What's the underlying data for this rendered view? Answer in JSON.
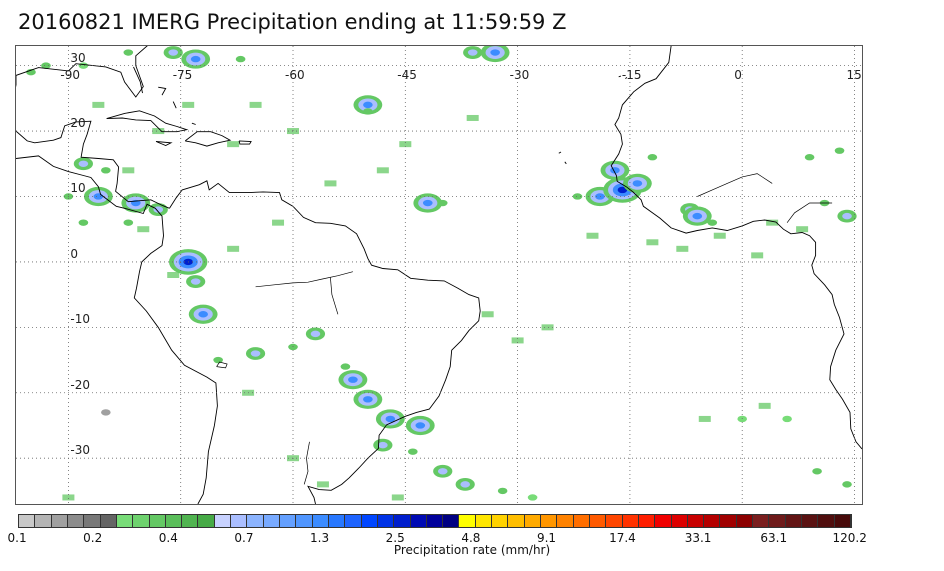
{
  "title": "20160821 IMERG Precipitation ending at 11:59:59 Z",
  "map": {
    "projection": "equirectangular",
    "lon_range": [
      -97,
      16
    ],
    "lat_range": [
      -37,
      33
    ],
    "lon_labels": [
      {
        "lon": -90,
        "text": "-90"
      },
      {
        "lon": -75,
        "text": "-75"
      },
      {
        "lon": -60,
        "text": "-60"
      },
      {
        "lon": -45,
        "text": "-45"
      },
      {
        "lon": -30,
        "text": "-30"
      },
      {
        "lon": -15,
        "text": "-15"
      },
      {
        "lon": 0,
        "text": "0"
      },
      {
        "lon": 15,
        "text": "15"
      }
    ],
    "lat_labels": [
      {
        "lat": 30,
        "text": "30"
      },
      {
        "lat": 20,
        "text": "20"
      },
      {
        "lat": 10,
        "text": "10"
      },
      {
        "lat": 0,
        "text": "0"
      },
      {
        "lat": -10,
        "text": "-10"
      },
      {
        "lat": -20,
        "text": "-20"
      },
      {
        "lat": -30,
        "text": "-30"
      }
    ],
    "gridlines": "dotted",
    "coastline_color": "#000000",
    "precip_cells": [
      {
        "lon": -95,
        "lat": 29,
        "level": 12
      },
      {
        "lon": -93,
        "lat": 30,
        "level": 9
      },
      {
        "lon": -88,
        "lat": 30,
        "level": 6
      },
      {
        "lon": -82,
        "lat": 32,
        "level": 8
      },
      {
        "lon": -76,
        "lat": 32,
        "level": 14
      },
      {
        "lon": -73,
        "lat": 31,
        "level": 20
      },
      {
        "lon": -67,
        "lat": 31,
        "level": 10
      },
      {
        "lon": -36,
        "lat": 32,
        "level": 16
      },
      {
        "lon": -33,
        "lat": 32,
        "level": 22
      },
      {
        "lon": -50,
        "lat": 24,
        "level": 18
      },
      {
        "lon": -50,
        "lat": 23,
        "level": 12
      },
      {
        "lon": -88,
        "lat": 15,
        "level": 14
      },
      {
        "lon": -85,
        "lat": 14,
        "level": 10
      },
      {
        "lon": -90,
        "lat": 10,
        "level": 12
      },
      {
        "lon": -86,
        "lat": 10,
        "level": 18
      },
      {
        "lon": -81,
        "lat": 9,
        "level": 20
      },
      {
        "lon": -78,
        "lat": 8,
        "level": 16
      },
      {
        "lon": -88,
        "lat": 6,
        "level": 10
      },
      {
        "lon": -82,
        "lat": 6,
        "level": 12
      },
      {
        "lon": -74,
        "lat": 0,
        "level": 24
      },
      {
        "lon": -73,
        "lat": -3,
        "level": 14
      },
      {
        "lon": -72,
        "lat": -8,
        "level": 18
      },
      {
        "lon": -70,
        "lat": -15,
        "level": 10
      },
      {
        "lon": -65,
        "lat": -14,
        "level": 14
      },
      {
        "lon": -60,
        "lat": -13,
        "level": 12
      },
      {
        "lon": -57,
        "lat": -11,
        "level": 16
      },
      {
        "lon": -53,
        "lat": -16,
        "level": 8
      },
      {
        "lon": -52,
        "lat": -18,
        "level": 18
      },
      {
        "lon": -50,
        "lat": -21,
        "level": 22
      },
      {
        "lon": -47,
        "lat": -24,
        "level": 18
      },
      {
        "lon": -43,
        "lat": -25,
        "level": 20
      },
      {
        "lon": -44,
        "lat": -29,
        "level": 12
      },
      {
        "lon": -48,
        "lat": -28,
        "level": 16
      },
      {
        "lon": -40,
        "lat": -32,
        "level": 14
      },
      {
        "lon": -37,
        "lat": -34,
        "level": 16
      },
      {
        "lon": -32,
        "lat": -35,
        "level": 10
      },
      {
        "lon": -28,
        "lat": -36,
        "level": 6
      },
      {
        "lon": -42,
        "lat": 9,
        "level": 18
      },
      {
        "lon": -40,
        "lat": 9,
        "level": 12
      },
      {
        "lon": -22,
        "lat": 10,
        "level": 12
      },
      {
        "lon": -19,
        "lat": 10,
        "level": 18
      },
      {
        "lon": -16,
        "lat": 11,
        "level": 26
      },
      {
        "lon": -17,
        "lat": 14,
        "level": 20
      },
      {
        "lon": -14,
        "lat": 12,
        "level": 22
      },
      {
        "lon": -7,
        "lat": 8,
        "level": 14
      },
      {
        "lon": -6,
        "lat": 7,
        "level": 18
      },
      {
        "lon": -4,
        "lat": 6,
        "level": 12
      },
      {
        "lon": 11,
        "lat": 9,
        "level": 10
      },
      {
        "lon": 14,
        "lat": 7,
        "level": 16
      },
      {
        "lon": 13,
        "lat": 17,
        "level": 10
      },
      {
        "lon": 9,
        "lat": 16,
        "level": 12
      },
      {
        "lon": -12,
        "lat": 16,
        "level": 8
      },
      {
        "lon": 0,
        "lat": -24,
        "level": 6
      },
      {
        "lon": 6,
        "lat": -24,
        "level": 6
      },
      {
        "lon": 14,
        "lat": -34,
        "level": 12
      },
      {
        "lon": 10,
        "lat": -32,
        "level": 8
      },
      {
        "lon": -85,
        "lat": -23,
        "level": 2
      }
    ],
    "light_rain_cells": [
      {
        "lon": -80,
        "lat": 5
      },
      {
        "lon": -76,
        "lat": -2
      },
      {
        "lon": -68,
        "lat": 2
      },
      {
        "lon": -62,
        "lat": 6
      },
      {
        "lon": -55,
        "lat": 12
      },
      {
        "lon": -48,
        "lat": 14
      },
      {
        "lon": -45,
        "lat": 18
      },
      {
        "lon": -36,
        "lat": 22
      },
      {
        "lon": -60,
        "lat": 20
      },
      {
        "lon": -65,
        "lat": 24
      },
      {
        "lon": -68,
        "lat": 18
      },
      {
        "lon": -20,
        "lat": 4
      },
      {
        "lon": -12,
        "lat": 3
      },
      {
        "lon": -8,
        "lat": 2
      },
      {
        "lon": -3,
        "lat": 4
      },
      {
        "lon": 4,
        "lat": 6
      },
      {
        "lon": 8,
        "lat": 5
      },
      {
        "lon": 2,
        "lat": 1
      },
      {
        "lon": -26,
        "lat": -10
      },
      {
        "lon": -30,
        "lat": -12
      },
      {
        "lon": -66,
        "lat": -20
      },
      {
        "lon": -60,
        "lat": -30
      },
      {
        "lon": -34,
        "lat": -8
      },
      {
        "lon": -5,
        "lat": -24
      },
      {
        "lon": 3,
        "lat": -22
      },
      {
        "lon": -56,
        "lat": -34
      },
      {
        "lon": -46,
        "lat": -36
      },
      {
        "lon": -82,
        "lat": 14
      },
      {
        "lon": -78,
        "lat": 20
      },
      {
        "lon": -74,
        "lat": 24
      },
      {
        "lon": -86,
        "lat": 24
      },
      {
        "lon": -90,
        "lat": -36
      }
    ]
  },
  "colorbar": {
    "title": "Precipitation rate (mm/hr)",
    "colors": [
      "#c8c8c8",
      "#b4b4b4",
      "#a0a0a0",
      "#8c8c8c",
      "#787878",
      "#646464",
      "#78dc78",
      "#6ed26e",
      "#64c864",
      "#5abe5a",
      "#50b450",
      "#46aa46",
      "#c8d2ff",
      "#aabeff",
      "#8cb4ff",
      "#78aaff",
      "#64a0ff",
      "#5096ff",
      "#3c8cff",
      "#2878ff",
      "#1e64ff",
      "#0046ff",
      "#0032e6",
      "#001ecd",
      "#000ab4",
      "#00009b",
      "#000082",
      "#ffff00",
      "#ffe600",
      "#ffd200",
      "#ffbe00",
      "#ffaa00",
      "#ff9600",
      "#ff8200",
      "#ff6e00",
      "#ff5a00",
      "#ff4600",
      "#ff3200",
      "#ff1e00",
      "#f00000",
      "#dc0000",
      "#c80000",
      "#b40000",
      "#a00000",
      "#8c0000",
      "#7a1e1e",
      "#6e1a1a",
      "#621414",
      "#5a1212",
      "#500e0e",
      "#480a0a"
    ],
    "labels": [
      {
        "text": "0.1",
        "index": 0
      },
      {
        "text": "0.2",
        "index": 7
      },
      {
        "text": "0.4",
        "index": 14
      },
      {
        "text": "0.7",
        "index": 21
      },
      {
        "text": "1.3",
        "index": 28
      },
      {
        "text": "2.5",
        "index": 35
      },
      {
        "text": "4.8",
        "index": 42
      },
      {
        "text": "9.1",
        "index": 49
      },
      {
        "text": "17.4",
        "index": 56
      },
      {
        "text": "33.1",
        "index": 63
      },
      {
        "text": "63.1",
        "index": 70
      },
      {
        "text": "120.2",
        "index": 77
      }
    ]
  }
}
